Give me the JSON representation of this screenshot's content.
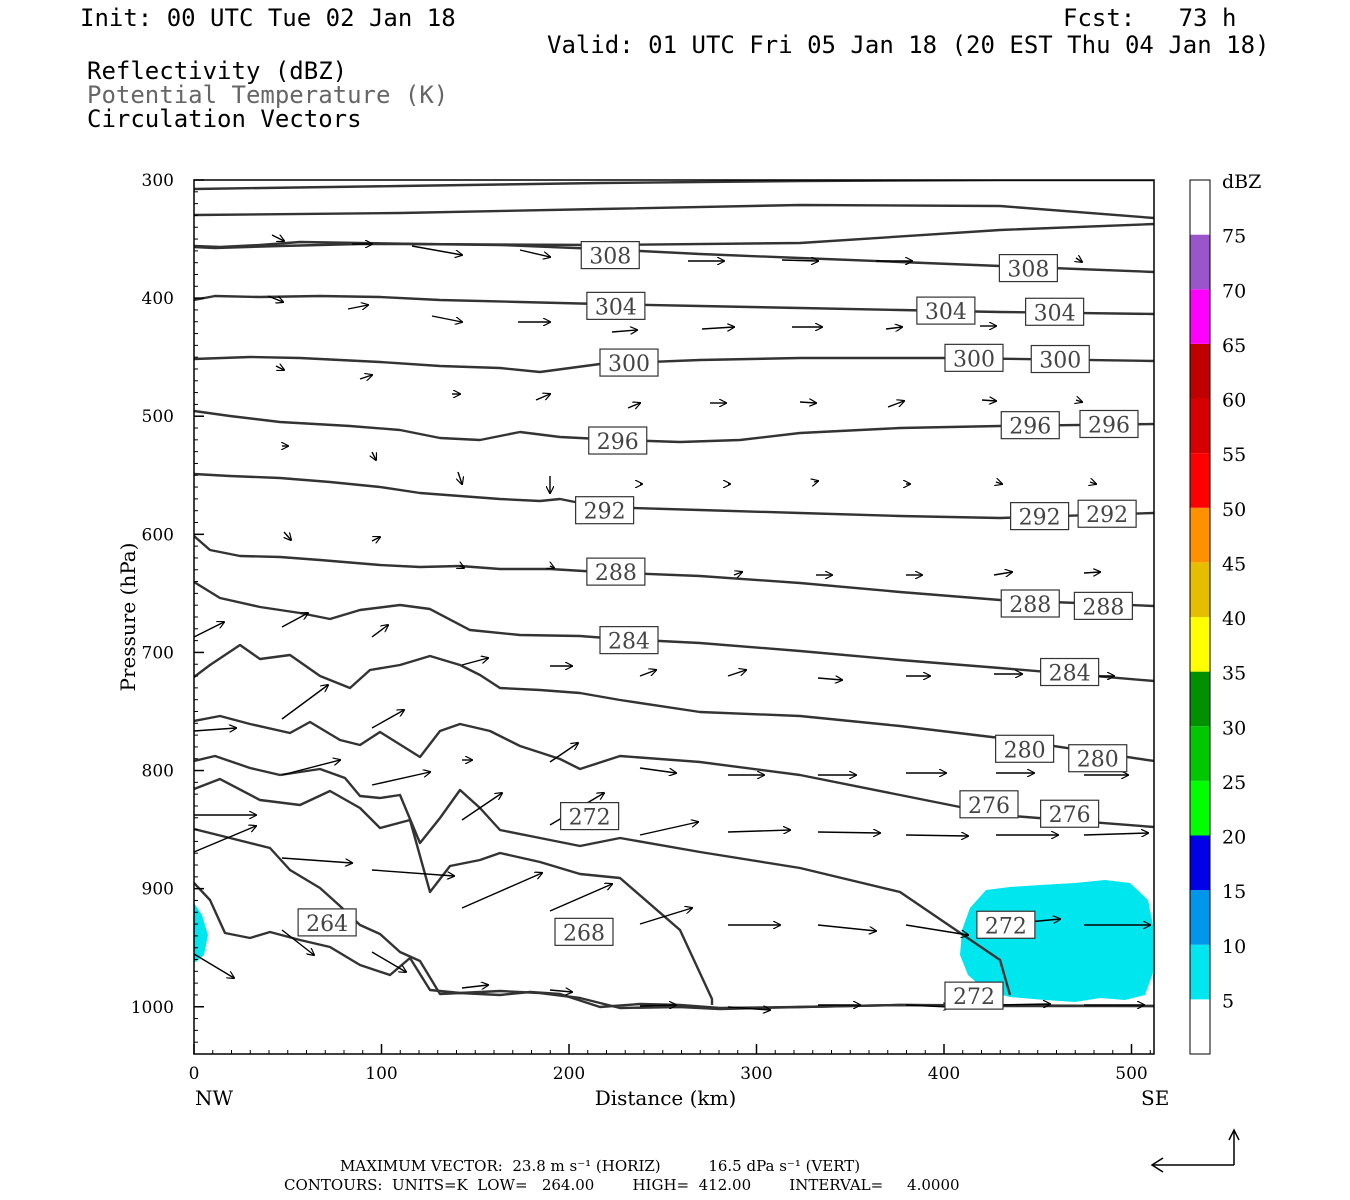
{
  "header": {
    "init": "Init: 00 UTC Tue 02 Jan 18",
    "fcst": "Fcst:   73 h",
    "valid": "Valid: 01 UTC Fri 05 Jan 18 (20 EST Thu 04 Jan 18)",
    "fields": [
      "Reflectivity (dBZ)",
      "Potential Temperature (K)",
      "Circulation Vectors"
    ]
  },
  "chart_data": {
    "type": "cross-section",
    "xlabel": "Distance (km)",
    "ylabel": "Pressure (hPa)",
    "xlim": [
      0,
      512
    ],
    "ylim": [
      1040,
      300
    ],
    "x_ticks": [
      0,
      100,
      200,
      300,
      400,
      500
    ],
    "y_ticks": [
      300,
      400,
      500,
      600,
      700,
      800,
      900,
      1000
    ],
    "x_end_labels": {
      "left": "NW",
      "right": "SE"
    },
    "colorbar": {
      "unit": "dBZ",
      "levels": [
        5,
        10,
        15,
        20,
        25,
        30,
        35,
        40,
        45,
        50,
        55,
        60,
        65,
        70,
        75
      ],
      "colors": [
        "#ffffff",
        "#00e6ee",
        "#0096ea",
        "#0000e6",
        "#00ff00",
        "#00c800",
        "#009000",
        "#ffff00",
        "#e6be00",
        "#ff9000",
        "#ff0000",
        "#d70000",
        "#c00000",
        "#ff00ff",
        "#9955c9",
        "#ffffff"
      ]
    },
    "theta_labels": [
      {
        "text": "308",
        "x": 222,
        "p": 364
      },
      {
        "text": "308",
        "x": 445,
        "p": 375
      },
      {
        "text": "304",
        "x": 225,
        "p": 407
      },
      {
        "text": "304",
        "x": 401,
        "p": 411
      },
      {
        "text": "304",
        "x": 459,
        "p": 412
      },
      {
        "text": "300",
        "x": 232,
        "p": 455
      },
      {
        "text": "300",
        "x": 416,
        "p": 451
      },
      {
        "text": "300",
        "x": 462,
        "p": 452
      },
      {
        "text": "296",
        "x": 226,
        "p": 521
      },
      {
        "text": "296",
        "x": 446,
        "p": 508
      },
      {
        "text": "296",
        "x": 488,
        "p": 507
      },
      {
        "text": "292",
        "x": 219,
        "p": 580
      },
      {
        "text": "292",
        "x": 451,
        "p": 585
      },
      {
        "text": "292",
        "x": 487,
        "p": 583
      },
      {
        "text": "288",
        "x": 225,
        "p": 632
      },
      {
        "text": "288",
        "x": 446,
        "p": 659
      },
      {
        "text": "288",
        "x": 485,
        "p": 661
      },
      {
        "text": "284",
        "x": 232,
        "p": 690
      },
      {
        "text": "284",
        "x": 467,
        "p": 717
      },
      {
        "text": "280",
        "x": 443,
        "p": 782
      },
      {
        "text": "280",
        "x": 482,
        "p": 790
      },
      {
        "text": "276",
        "x": 424,
        "p": 829
      },
      {
        "text": "276",
        "x": 467,
        "p": 837
      },
      {
        "text": "272",
        "x": 211,
        "p": 839
      },
      {
        "text": "272",
        "x": 433,
        "p": 931
      },
      {
        "text": "272",
        "x": 416,
        "p": 991
      },
      {
        "text": "268",
        "x": 208,
        "p": 937
      },
      {
        "text": "264",
        "x": 71,
        "p": 929
      }
    ],
    "footer_max_vector": "MAXIMUM VECTOR:  23.8 m s⁻¹ (HORIZ)          16.5 dPa s⁻¹ (VERT)",
    "footer_contours": "CONTOURS:  UNITS=K  LOW=   264.00        HIGH=  412.00        INTERVAL=     4.0000"
  }
}
